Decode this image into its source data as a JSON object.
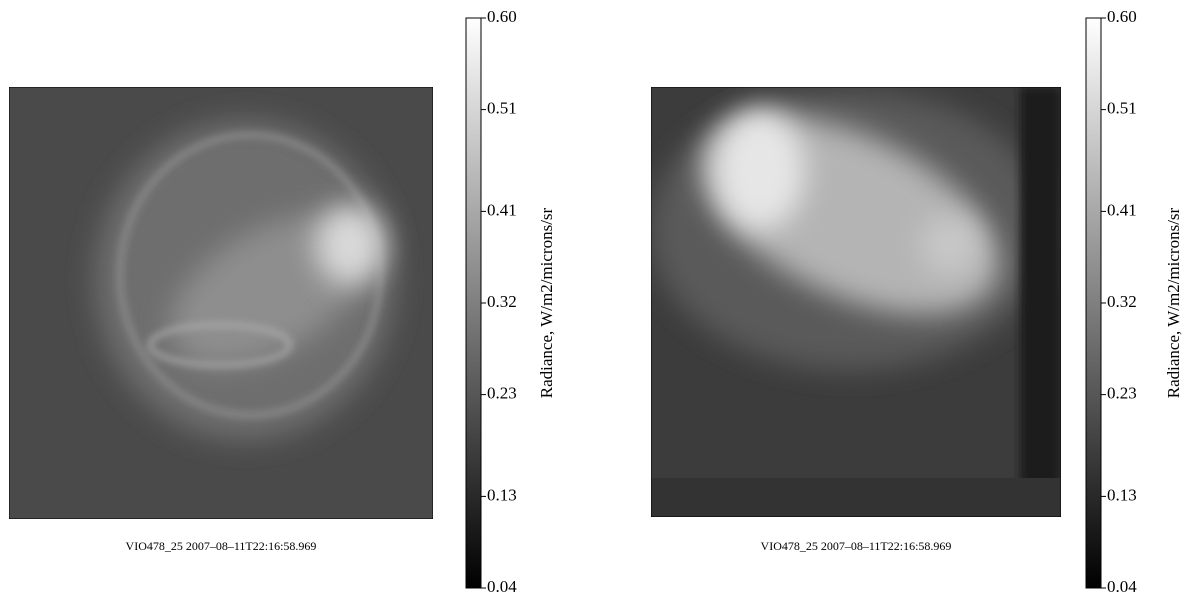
{
  "chart_data": [
    {
      "type": "image",
      "caption": "VIO478_25    2007–08–11T22:16:58.969",
      "colorbar_label": "Radiance, W/m2/microns/sr",
      "clim": [
        0.04,
        0.6
      ],
      "cticks": [
        0.04,
        0.13,
        0.23,
        0.32,
        0.41,
        0.51,
        {
          "value": 0.6,
          "label": "0.60"
        }
      ]
    },
    {
      "type": "image",
      "caption": "VIO478_25    2007–08–11T22:16:58.969",
      "colorbar_label": "Radiance, W/m2/microns/sr",
      "clim": [
        0.04,
        0.6
      ],
      "cticks": [
        0.04,
        0.13,
        0.23,
        0.32,
        0.41,
        0.51,
        {
          "value": 0.6,
          "label": "0.60"
        }
      ]
    }
  ]
}
